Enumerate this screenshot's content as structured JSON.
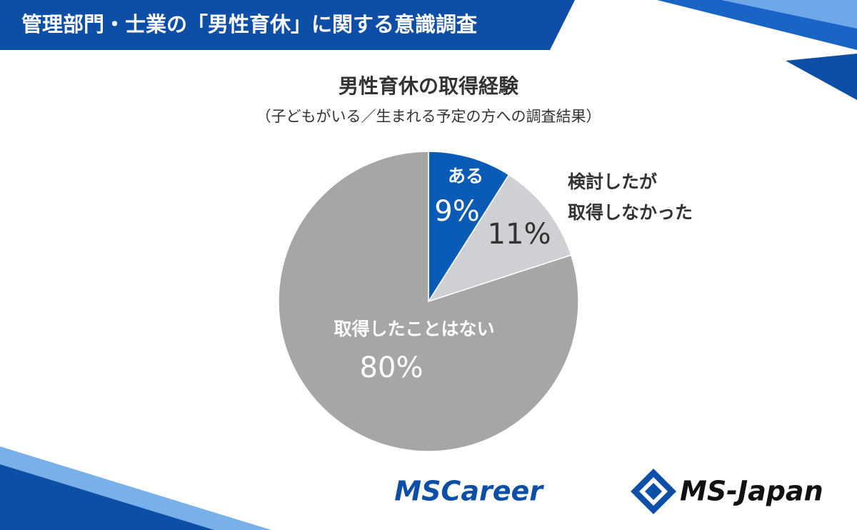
{
  "header": {
    "title": "管理部門・士業の「男性育休」に関する意識調査"
  },
  "chart_data": {
    "type": "pie",
    "title": "男性育休の取得経験",
    "subtitle": "（子どもがいる／生まれる予定の方への調査結果）",
    "categories": [
      "ある",
      "検討したが\n取得しなかった",
      "取得したことはない"
    ],
    "values": [
      9,
      11,
      80
    ],
    "value_labels": [
      "9%",
      "11%",
      "80%"
    ],
    "colors": [
      "#0a5bb5",
      "#cfd0d4",
      "#a6a6a6"
    ]
  },
  "footer": {
    "logos": [
      "MSCareer",
      "MS-Japan"
    ]
  }
}
